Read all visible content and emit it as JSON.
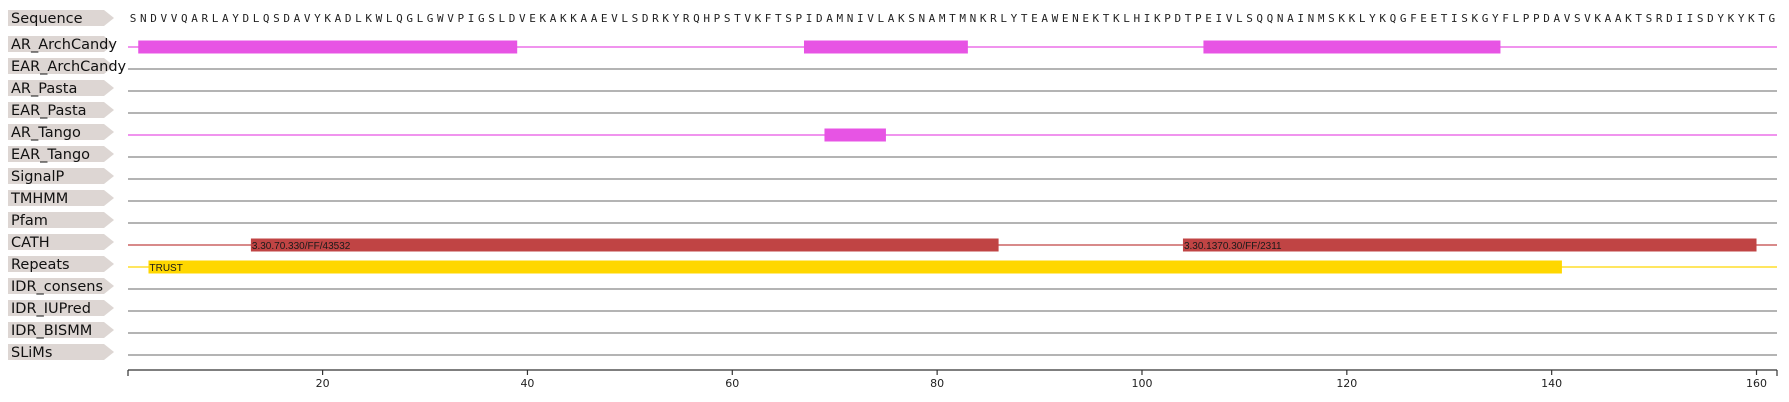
{
  "chart_data": {
    "type": "feature-track",
    "sequence_label": "Sequence",
    "sequence": "SNDVVQARLAYDLQSDAVYKADLKWLQGLGWVPIGSLDVEKAKKAAEVLSDRKYRQHPSTVKFTSPIDAMNIVLAKSNAMTMNKRLYTEAWENEKTKLHIKPDTPEIVLSQQNAINMSKKLYKQGFEETISKGYFLPPDAVSVKAAKTSRDIISDYKYKTG",
    "xlim": [
      1,
      162
    ],
    "x_ticks": [
      20,
      40,
      60,
      80,
      100,
      120,
      140,
      160
    ],
    "tracks": [
      {
        "name": "AR_ArchCandy",
        "color": "#e754e4",
        "features": [
          {
            "start": 2,
            "end": 39,
            "label": ""
          },
          {
            "start": 67,
            "end": 83,
            "label": ""
          },
          {
            "start": 106,
            "end": 135,
            "label": ""
          }
        ]
      },
      {
        "name": "EAR_ArchCandy",
        "color": "#888888",
        "features": []
      },
      {
        "name": "AR_Pasta",
        "color": "#888888",
        "features": []
      },
      {
        "name": "EAR_Pasta",
        "color": "#888888",
        "features": []
      },
      {
        "name": "AR_Tango",
        "color": "#e754e4",
        "features": [
          {
            "start": 69,
            "end": 75,
            "label": ""
          }
        ]
      },
      {
        "name": "EAR_Tango",
        "color": "#888888",
        "features": []
      },
      {
        "name": "SignalP",
        "color": "#888888",
        "features": []
      },
      {
        "name": "TMHMM",
        "color": "#888888",
        "features": []
      },
      {
        "name": "Pfam",
        "color": "#888888",
        "features": []
      },
      {
        "name": "CATH",
        "color": "#c04444",
        "features": [
          {
            "start": 13,
            "end": 86,
            "label": "3.30.70.330/FF/43532"
          },
          {
            "start": 104,
            "end": 160,
            "label": "3.30.1370.30/FF/2311"
          }
        ]
      },
      {
        "name": "Repeats",
        "color": "#ffd700",
        "features": [
          {
            "start": 3,
            "end": 141,
            "label": "TRUST"
          }
        ]
      },
      {
        "name": "IDR_consens",
        "color": "#888888",
        "features": []
      },
      {
        "name": "IDR_IUPred",
        "color": "#888888",
        "features": []
      },
      {
        "name": "IDR_BISMM",
        "color": "#888888",
        "features": []
      },
      {
        "name": "SLiMs",
        "color": "#888888",
        "features": []
      }
    ],
    "label_bg_color": "#ddd6d3"
  }
}
